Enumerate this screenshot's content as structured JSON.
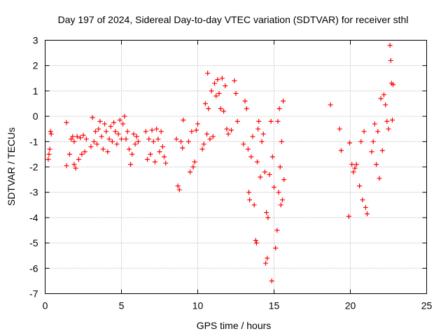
{
  "chart_data": {
    "type": "scatter",
    "title": "Day 197 of 2024, Sidereal Day-to-day VTEC variation (SDTVAR) for receiver sthl",
    "xlabel": "GPS time / hours",
    "ylabel": "SDTVAR / TECUs",
    "xlim": [
      0,
      25
    ],
    "ylim": [
      -7,
      3
    ],
    "xticks": [
      "0",
      "5",
      "10",
      "15",
      "20",
      "25"
    ],
    "yticks": [
      "3",
      "2",
      "1",
      "0",
      "-1",
      "-2",
      "-3",
      "-4",
      "-5",
      "-6",
      "-7"
    ],
    "grid": true,
    "marker": "+",
    "color": "#ff0000",
    "series": [
      {
        "name": "sthl",
        "points": [
          [
            0.2,
            -1.7
          ],
          [
            0.25,
            -1.5
          ],
          [
            0.3,
            -1.3
          ],
          [
            0.35,
            -0.6
          ],
          [
            0.4,
            -0.7
          ],
          [
            1.4,
            -0.25
          ],
          [
            1.4,
            -1.95
          ],
          [
            1.6,
            -1.5
          ],
          [
            1.7,
            -0.9
          ],
          [
            1.8,
            -0.8
          ],
          [
            1.9,
            -1.0
          ],
          [
            1.9,
            -1.9
          ],
          [
            2.0,
            -2.05
          ],
          [
            2.1,
            -0.8
          ],
          [
            2.2,
            -1.7
          ],
          [
            2.3,
            -0.85
          ],
          [
            2.4,
            -1.5
          ],
          [
            2.5,
            -0.75
          ],
          [
            2.6,
            -1.4
          ],
          [
            2.7,
            -0.9
          ],
          [
            3.0,
            -1.2
          ],
          [
            3.1,
            -0.05
          ],
          [
            3.2,
            -1.0
          ],
          [
            3.3,
            -0.6
          ],
          [
            3.4,
            -1.1
          ],
          [
            3.5,
            -0.5
          ],
          [
            3.6,
            -0.2
          ],
          [
            3.7,
            -0.8
          ],
          [
            3.8,
            -1.3
          ],
          [
            3.9,
            -0.3
          ],
          [
            4.0,
            -0.6
          ],
          [
            4.1,
            -1.4
          ],
          [
            4.2,
            -0.9
          ],
          [
            4.3,
            -0.4
          ],
          [
            4.4,
            -1.0
          ],
          [
            4.5,
            -0.25
          ],
          [
            4.6,
            -0.6
          ],
          [
            4.7,
            -1.1
          ],
          [
            4.8,
            -0.7
          ],
          [
            4.9,
            -0.15
          ],
          [
            5.0,
            -0.9
          ],
          [
            5.1,
            -0.3
          ],
          [
            5.2,
            0.0
          ],
          [
            5.3,
            -0.9
          ],
          [
            5.4,
            -0.6
          ],
          [
            5.5,
            -1.3
          ],
          [
            5.6,
            -1.9
          ],
          [
            5.7,
            -1.5
          ],
          [
            5.8,
            -0.7
          ],
          [
            5.9,
            -1.1
          ],
          [
            6.0,
            -0.8
          ],
          [
            6.1,
            -1.0
          ],
          [
            6.6,
            -0.6
          ],
          [
            6.7,
            -1.7
          ],
          [
            6.8,
            -0.9
          ],
          [
            6.9,
            -1.5
          ],
          [
            7.0,
            -0.55
          ],
          [
            7.1,
            -1.0
          ],
          [
            7.2,
            -1.8
          ],
          [
            7.3,
            -0.5
          ],
          [
            7.4,
            -0.9
          ],
          [
            7.5,
            -1.4
          ],
          [
            7.6,
            -0.6
          ],
          [
            7.7,
            -1.2
          ],
          [
            7.8,
            -1.6
          ],
          [
            7.9,
            -1.85
          ],
          [
            8.6,
            -0.9
          ],
          [
            8.7,
            -2.75
          ],
          [
            8.8,
            -2.9
          ],
          [
            8.9,
            -1.0
          ],
          [
            9.0,
            -1.25
          ],
          [
            9.05,
            -0.15
          ],
          [
            9.4,
            -1.0
          ],
          [
            9.5,
            -2.2
          ],
          [
            9.6,
            -0.6
          ],
          [
            9.7,
            -2.0
          ],
          [
            9.8,
            -1.8
          ],
          [
            9.9,
            -0.55
          ],
          [
            10.0,
            -0.3
          ],
          [
            10.3,
            -1.3
          ],
          [
            10.4,
            -1.1
          ],
          [
            10.5,
            0.5
          ],
          [
            10.6,
            -0.7
          ],
          [
            10.65,
            1.7
          ],
          [
            10.7,
            0.3
          ],
          [
            10.8,
            -0.9
          ],
          [
            10.9,
            1.0
          ],
          [
            11.0,
            -0.8
          ],
          [
            11.1,
            1.3
          ],
          [
            11.2,
            0.8
          ],
          [
            11.3,
            1.45
          ],
          [
            11.4,
            0.9
          ],
          [
            11.5,
            0.3
          ],
          [
            11.6,
            1.5
          ],
          [
            11.7,
            0.2
          ],
          [
            11.8,
            1.2
          ],
          [
            11.9,
            -0.5
          ],
          [
            12.0,
            -0.7
          ],
          [
            12.2,
            -0.55
          ],
          [
            12.4,
            1.4
          ],
          [
            12.5,
            0.9
          ],
          [
            12.6,
            -0.2
          ],
          [
            13.0,
            -1.1
          ],
          [
            13.1,
            0.6
          ],
          [
            13.2,
            0.3
          ],
          [
            13.3,
            -1.3
          ],
          [
            13.35,
            -3.0
          ],
          [
            13.4,
            -3.3
          ],
          [
            13.5,
            -1.6
          ],
          [
            13.6,
            -0.8
          ],
          [
            13.7,
            -3.5
          ],
          [
            13.8,
            -4.9
          ],
          [
            13.85,
            -5.0
          ],
          [
            13.9,
            -1.8
          ],
          [
            13.95,
            -0.5
          ],
          [
            14.0,
            -0.2
          ],
          [
            14.1,
            -2.4
          ],
          [
            14.2,
            -1.0
          ],
          [
            14.3,
            -0.7
          ],
          [
            14.4,
            -2.2
          ],
          [
            14.45,
            -5.8
          ],
          [
            14.5,
            -3.8
          ],
          [
            14.55,
            -5.6
          ],
          [
            14.6,
            -4.0
          ],
          [
            14.7,
            -2.3
          ],
          [
            14.8,
            -0.2
          ],
          [
            14.85,
            -6.5
          ],
          [
            14.9,
            -1.6
          ],
          [
            15.0,
            -2.8
          ],
          [
            15.1,
            -5.2
          ],
          [
            15.2,
            -4.5
          ],
          [
            15.25,
            -0.2
          ],
          [
            15.3,
            -3.0
          ],
          [
            15.35,
            0.3
          ],
          [
            15.4,
            -2.0
          ],
          [
            15.45,
            -3.5
          ],
          [
            15.5,
            -1.0
          ],
          [
            15.55,
            -3.3
          ],
          [
            15.6,
            0.6
          ],
          [
            15.65,
            -2.5
          ],
          [
            18.7,
            0.45
          ],
          [
            19.3,
            -0.5
          ],
          [
            19.4,
            -1.35
          ],
          [
            19.9,
            -3.95
          ],
          [
            19.95,
            -1.05
          ],
          [
            20.1,
            -1.9
          ],
          [
            20.2,
            -2.2
          ],
          [
            20.3,
            -2.05
          ],
          [
            20.4,
            -1.9
          ],
          [
            20.6,
            -2.75
          ],
          [
            20.7,
            -1.0
          ],
          [
            20.8,
            -3.3
          ],
          [
            20.9,
            -0.6
          ],
          [
            21.0,
            -3.6
          ],
          [
            21.1,
            -3.85
          ],
          [
            21.4,
            -1.4
          ],
          [
            21.5,
            -1.0
          ],
          [
            21.6,
            -0.3
          ],
          [
            21.7,
            -1.9
          ],
          [
            21.8,
            -0.6
          ],
          [
            21.9,
            -2.45
          ],
          [
            22.0,
            0.7
          ],
          [
            22.1,
            -1.35
          ],
          [
            22.2,
            0.85
          ],
          [
            22.3,
            0.45
          ],
          [
            22.4,
            -0.2
          ],
          [
            22.5,
            -0.5
          ],
          [
            22.6,
            2.8
          ],
          [
            22.65,
            2.2
          ],
          [
            22.7,
            1.3
          ],
          [
            22.75,
            -0.15
          ],
          [
            22.8,
            1.25
          ]
        ]
      }
    ]
  }
}
